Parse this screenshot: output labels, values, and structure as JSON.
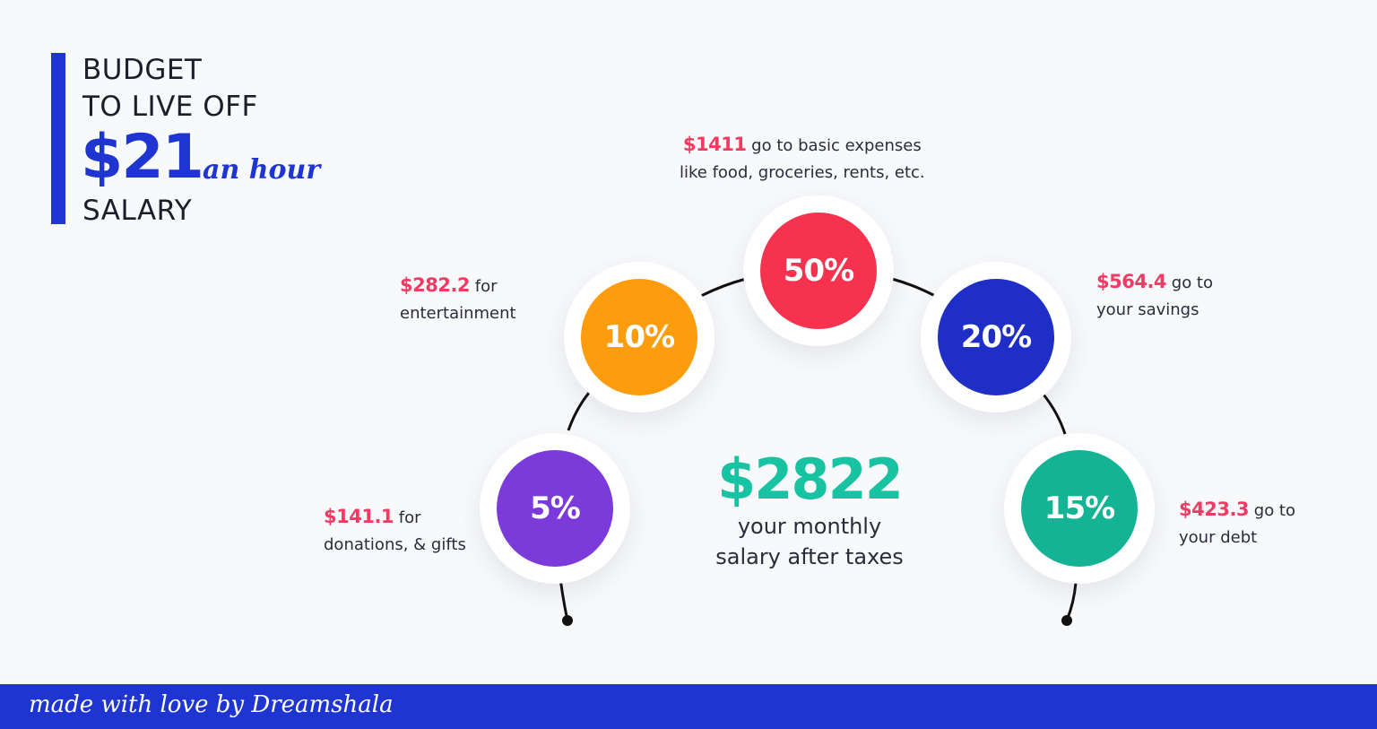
{
  "title": {
    "line1": "BUDGET",
    "line2": "TO LIVE OFF",
    "amount": "$21",
    "script": "an hour",
    "line4": "SALARY"
  },
  "center": {
    "amount": "$2822",
    "line1": "your monthly",
    "line2": "salary after taxes"
  },
  "segments": [
    {
      "percent": "5%",
      "amount": "$141.1",
      "text1": " for",
      "text2": "donations, & gifts",
      "color": "#7b3ad9"
    },
    {
      "percent": "10%",
      "amount": "$282.2",
      "text1": " for",
      "text2": "entertainment",
      "color": "#fd9c0c"
    },
    {
      "percent": "50%",
      "amount": "$1411",
      "text1": " go to basic expenses",
      "text2": "like food, groceries, rents, etc.",
      "color": "#f6334f"
    },
    {
      "percent": "20%",
      "amount": "$564.4",
      "text1": " go to",
      "text2": "your savings",
      "color": "#1f2ec6"
    },
    {
      "percent": "15%",
      "amount": "$423.3",
      "text1": " go to",
      "text2": "your debt",
      "color": "#14b394"
    }
  ],
  "footer": {
    "text": "made with love by Dreamshala"
  },
  "colors": {
    "accent_blue": "#1f35d1",
    "highlight_pink": "#f23a63",
    "center_green": "#17c3a2"
  }
}
